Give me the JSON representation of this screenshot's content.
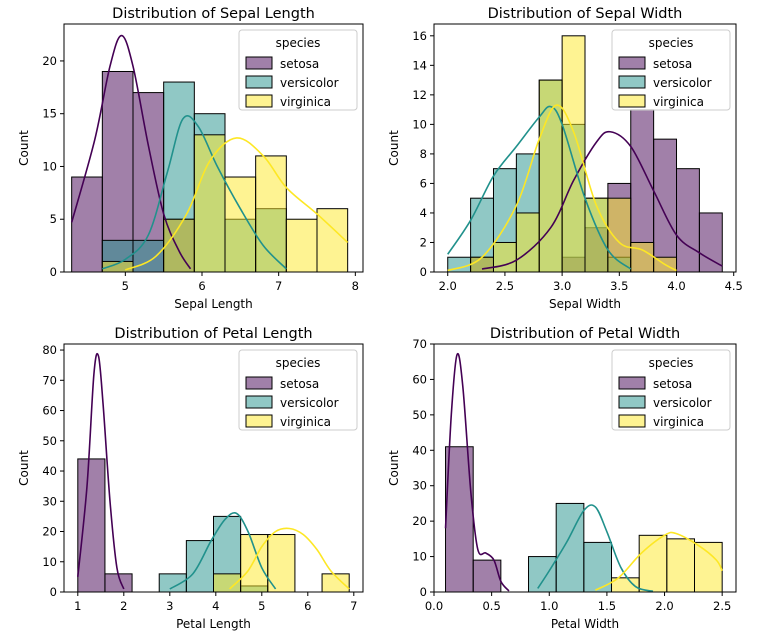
{
  "colors": {
    "setosa": "#440154",
    "versicolor": "#21918c",
    "virginica": "#fde725"
  },
  "legend_title": "species",
  "ylabel": "Count",
  "chart_data": [
    {
      "type": "bar",
      "title": "Distribution of Sepal Length",
      "xlabel": "Sepal Length",
      "ylabel": "Count",
      "xlim": [
        4.2,
        8.1
      ],
      "ylim": [
        0,
        23.5
      ],
      "xticks": [
        5,
        6,
        7,
        8
      ],
      "xtick_labels": [
        "5",
        "6",
        "7",
        "8"
      ],
      "yticks": [
        0,
        5,
        10,
        15,
        20
      ],
      "ytick_labels": [
        "0",
        "5",
        "10",
        "15",
        "20"
      ],
      "bin_edges": [
        4.3,
        4.7,
        5.1,
        5.5,
        5.9,
        6.3,
        6.7,
        7.1,
        7.5,
        7.9
      ],
      "legend": "top-right",
      "series": [
        {
          "name": "setosa",
          "values": [
            9,
            19,
            17,
            5,
            0,
            0,
            0,
            0,
            0
          ],
          "kde": [
            [
              4.3,
              4.7
            ],
            [
              4.6,
              12.5
            ],
            [
              4.8,
              19.5
            ],
            [
              4.95,
              22.4
            ],
            [
              5.1,
              19.5
            ],
            [
              5.3,
              12
            ],
            [
              5.5,
              5.5
            ],
            [
              5.7,
              2
            ],
            [
              5.85,
              0.3
            ]
          ]
        },
        {
          "name": "versicolor",
          "values": [
            0,
            3,
            3,
            18,
            15,
            5,
            6,
            0,
            0
          ],
          "kde": [
            [
              4.7,
              0.3
            ],
            [
              5.0,
              1.2
            ],
            [
              5.3,
              3.5
            ],
            [
              5.55,
              9.5
            ],
            [
              5.75,
              14.5
            ],
            [
              5.95,
              13.8
            ],
            [
              6.2,
              10
            ],
            [
              6.5,
              6
            ],
            [
              6.8,
              2.5
            ],
            [
              7.1,
              0.3
            ]
          ]
        },
        {
          "name": "virginica",
          "values": [
            0,
            1,
            0,
            5,
            13,
            9,
            11,
            5,
            6
          ],
          "kde": [
            [
              5.0,
              0.2
            ],
            [
              5.4,
              1.5
            ],
            [
              5.8,
              5.5
            ],
            [
              6.1,
              10.5
            ],
            [
              6.45,
              12.7
            ],
            [
              6.8,
              11
            ],
            [
              7.1,
              8
            ],
            [
              7.5,
              5.5
            ],
            [
              7.9,
              2.8
            ]
          ]
        }
      ]
    },
    {
      "type": "bar",
      "title": "Distribution of Sepal Width",
      "xlabel": "Sepal Width",
      "ylabel": "Count",
      "xlim": [
        1.88,
        4.52
      ],
      "ylim": [
        0,
        16.8
      ],
      "xticks": [
        2.0,
        2.5,
        3.0,
        3.5,
        4.0,
        4.5
      ],
      "xtick_labels": [
        "2.0",
        "2.5",
        "3.0",
        "3.5",
        "4.0",
        "4.5"
      ],
      "yticks": [
        0,
        2,
        4,
        6,
        8,
        10,
        12,
        14,
        16
      ],
      "ytick_labels": [
        "0",
        "2",
        "4",
        "6",
        "8",
        "10",
        "12",
        "14",
        "16"
      ],
      "bin_edges": [
        2.0,
        2.2,
        2.4,
        2.6,
        2.8,
        3.0,
        3.2,
        3.4,
        3.6,
        3.8,
        4.0,
        4.2,
        4.4
      ],
      "legend": "top-right",
      "series": [
        {
          "name": "setosa",
          "values": [
            0,
            1,
            0,
            0,
            0,
            1,
            3,
            6,
            11,
            9,
            7,
            4
          ],
          "kde": [
            [
              2.3,
              0.2
            ],
            [
              2.6,
              0.8
            ],
            [
              2.9,
              3
            ],
            [
              3.1,
              6.2
            ],
            [
              3.3,
              8.8
            ],
            [
              3.42,
              9.5
            ],
            [
              3.6,
              8.5
            ],
            [
              3.8,
              5.5
            ],
            [
              4.0,
              2.5
            ],
            [
              4.2,
              1.3
            ],
            [
              4.4,
              0.4
            ]
          ]
        },
        {
          "name": "versicolor",
          "values": [
            1,
            5,
            7,
            8,
            13,
            10,
            5,
            1,
            0,
            0,
            0,
            0
          ],
          "kde": [
            [
              2.0,
              1.2
            ],
            [
              2.2,
              3.5
            ],
            [
              2.4,
              6.5
            ],
            [
              2.6,
              8.5
            ],
            [
              2.8,
              10.5
            ],
            [
              2.9,
              11.2
            ],
            [
              3.0,
              10
            ],
            [
              3.2,
              5
            ],
            [
              3.4,
              1.5
            ],
            [
              3.6,
              0.2
            ]
          ]
        },
        {
          "name": "virginica",
          "values": [
            0,
            1,
            2,
            4,
            13,
            16,
            5,
            5,
            2,
            1,
            0,
            0
          ],
          "kde": [
            [
              2.0,
              0.1
            ],
            [
              2.3,
              1
            ],
            [
              2.6,
              4.5
            ],
            [
              2.8,
              9
            ],
            [
              2.95,
              11.3
            ],
            [
              3.1,
              9.5
            ],
            [
              3.3,
              4.5
            ],
            [
              3.5,
              2
            ],
            [
              3.7,
              1.5
            ],
            [
              3.9,
              0.5
            ],
            [
              4.0,
              0.1
            ]
          ]
        }
      ]
    },
    {
      "type": "bar",
      "title": "Distribution of Petal Length",
      "xlabel": "Petal Length",
      "ylabel": "Count",
      "xlim": [
        0.7,
        7.2
      ],
      "ylim": [
        0,
        82
      ],
      "xticks": [
        1,
        2,
        3,
        4,
        5,
        6,
        7
      ],
      "xtick_labels": [
        "1",
        "2",
        "3",
        "4",
        "5",
        "6",
        "7"
      ],
      "yticks": [
        0,
        10,
        20,
        30,
        40,
        50,
        60,
        70,
        80
      ],
      "ytick_labels": [
        "0",
        "10",
        "20",
        "30",
        "40",
        "50",
        "60",
        "70",
        "80"
      ],
      "bin_edges": [
        1.0,
        1.59,
        2.18,
        2.77,
        3.36,
        3.95,
        4.54,
        5.13,
        5.72,
        6.31,
        6.9
      ],
      "legend": "top-right",
      "series": [
        {
          "name": "setosa",
          "values": [
            44,
            6,
            0,
            0,
            0,
            0,
            0,
            0,
            0,
            0
          ],
          "kde": [
            [
              1.0,
              5
            ],
            [
              1.2,
              35
            ],
            [
              1.35,
              72
            ],
            [
              1.45,
              78
            ],
            [
              1.55,
              62
            ],
            [
              1.7,
              30
            ],
            [
              1.85,
              8
            ],
            [
              2.0,
              1
            ]
          ]
        },
        {
          "name": "versicolor",
          "values": [
            0,
            0,
            0,
            6,
            17,
            25,
            2,
            0,
            0,
            0
          ],
          "kde": [
            [
              3.0,
              1
            ],
            [
              3.5,
              6
            ],
            [
              3.9,
              17
            ],
            [
              4.2,
              24
            ],
            [
              4.45,
              26
            ],
            [
              4.7,
              20
            ],
            [
              5.0,
              8
            ],
            [
              5.3,
              1
            ]
          ]
        },
        {
          "name": "virginica",
          "values": [
            0,
            0,
            0,
            0,
            0,
            6,
            19,
            19,
            0,
            6
          ],
          "kde": [
            [
              4.3,
              1
            ],
            [
              4.7,
              7
            ],
            [
              5.0,
              15
            ],
            [
              5.3,
              20
            ],
            [
              5.6,
              21
            ],
            [
              5.9,
              19
            ],
            [
              6.2,
              14
            ],
            [
              6.5,
              7
            ],
            [
              6.9,
              1
            ]
          ]
        }
      ]
    },
    {
      "type": "bar",
      "title": "Distribution of Petal Width",
      "xlabel": "Petal Width",
      "ylabel": "Count",
      "xlim": [
        0.0,
        2.62
      ],
      "ylim": [
        0,
        70
      ],
      "xticks": [
        0.0,
        0.5,
        1.0,
        1.5,
        2.0,
        2.5
      ],
      "xtick_labels": [
        "0.0",
        "0.5",
        "1.0",
        "1.5",
        "2.0",
        "2.5"
      ],
      "yticks": [
        0,
        10,
        20,
        30,
        40,
        50,
        60,
        70
      ],
      "ytick_labels": [
        "0",
        "10",
        "20",
        "30",
        "40",
        "50",
        "60",
        "70"
      ],
      "bin_edges": [
        0.1,
        0.34,
        0.58,
        0.82,
        1.06,
        1.3,
        1.54,
        1.78,
        2.02,
        2.26,
        2.5
      ],
      "legend": "top-right",
      "series": [
        {
          "name": "setosa",
          "values": [
            41,
            9,
            0,
            0,
            0,
            0,
            0,
            0,
            0,
            0
          ],
          "kde": [
            [
              0.1,
              18
            ],
            [
              0.15,
              50
            ],
            [
              0.2,
              67
            ],
            [
              0.25,
              58
            ],
            [
              0.32,
              28
            ],
            [
              0.38,
              12
            ],
            [
              0.45,
              11
            ],
            [
              0.52,
              9
            ],
            [
              0.58,
              3
            ],
            [
              0.65,
              0.3
            ]
          ]
        },
        {
          "name": "versicolor",
          "values": [
            0,
            0,
            0,
            10,
            25,
            14,
            0,
            0,
            0,
            0
          ],
          "kde": [
            [
              0.9,
              1
            ],
            [
              1.0,
              6
            ],
            [
              1.15,
              14
            ],
            [
              1.3,
              23
            ],
            [
              1.4,
              24
            ],
            [
              1.5,
              17
            ],
            [
              1.62,
              7
            ],
            [
              1.75,
              1.5
            ],
            [
              1.9,
              0.2
            ]
          ]
        },
        {
          "name": "virginica",
          "values": [
            0,
            0,
            0,
            0,
            0,
            0,
            4,
            16,
            15,
            14
          ],
          "kde": [
            [
              1.4,
              0.5
            ],
            [
              1.6,
              4
            ],
            [
              1.8,
              11
            ],
            [
              2.0,
              16
            ],
            [
              2.1,
              16.5
            ],
            [
              2.3,
              13
            ],
            [
              2.45,
              9
            ],
            [
              2.5,
              6
            ]
          ]
        }
      ]
    }
  ]
}
